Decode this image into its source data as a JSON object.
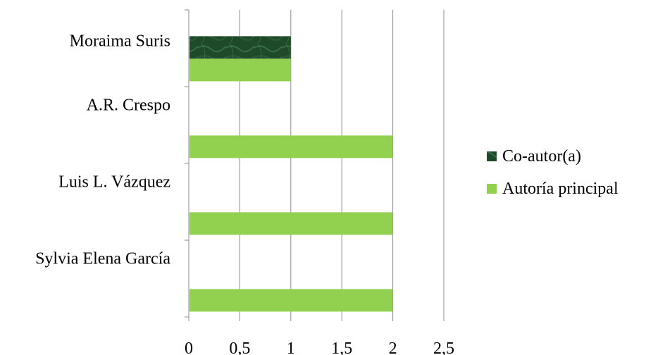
{
  "chart_data": {
    "type": "bar",
    "orientation": "horizontal",
    "categories": [
      "Moraima Suris",
      "A.R. Crespo",
      "Luis L. Vázquez",
      "Sylvia Elena García"
    ],
    "series": [
      {
        "name": "Co-autor(a)",
        "color": "#1f4d2b",
        "values": [
          1,
          0,
          0,
          0
        ]
      },
      {
        "name": "Autoría principal",
        "color": "#92d050",
        "values": [
          1,
          2,
          2,
          2
        ]
      }
    ],
    "xlim": [
      0,
      2.5
    ],
    "x_ticks": [
      "0",
      "0,5",
      "1",
      "1,5",
      "2",
      "2,5"
    ],
    "xlabel": "",
    "ylabel": "",
    "grid": "vertical",
    "legend_position": "right"
  }
}
